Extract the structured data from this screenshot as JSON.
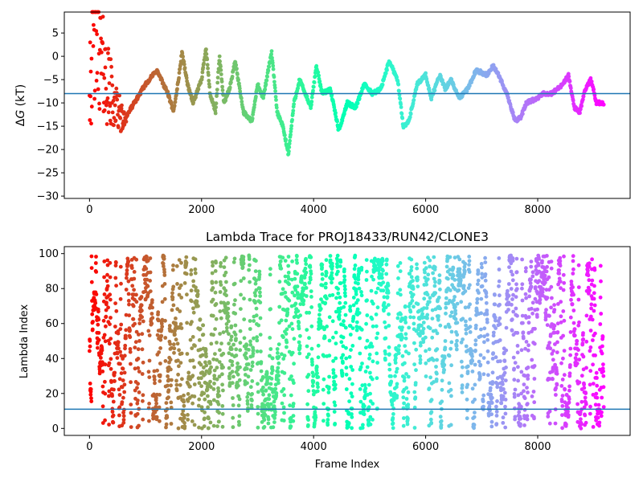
{
  "chart_data": [
    {
      "type": "scatter",
      "title": "",
      "xlabel": "",
      "ylabel_prefix": "Δ",
      "ylabel_var": "G",
      "ylabel_suffix": " (kT)",
      "xlim": [
        -450,
        9650
      ],
      "ylim": [
        -30.5,
        9.5
      ],
      "xticks": [
        0,
        2000,
        4000,
        6000,
        8000
      ],
      "xtick_labels": [
        "0",
        "2000",
        "4000",
        "6000",
        "8000"
      ],
      "yticks": [
        -30,
        -25,
        -20,
        -15,
        -10,
        -5,
        0,
        5
      ],
      "ytick_labels": [
        "−30",
        "−25",
        "−20",
        "−15",
        "−10",
        "−5",
        "0",
        "5"
      ],
      "hline": -8,
      "hline_color": "#1f77b4",
      "colormap": "rainbow (reversed: red at frame 0, violet at last frame)",
      "n_frames": 9200,
      "trace_waypoints": [
        [
          0,
          0
        ],
        [
          120,
          4
        ],
        [
          250,
          -3
        ],
        [
          400,
          -9
        ],
        [
          600,
          -14
        ],
        [
          800,
          -10
        ],
        [
          1000,
          -6
        ],
        [
          1200,
          -3
        ],
        [
          1400,
          -8
        ],
        [
          1500,
          -12
        ],
        [
          1600,
          -4
        ],
        [
          1650,
          1
        ],
        [
          1750,
          -6
        ],
        [
          1850,
          -10
        ],
        [
          2000,
          -5
        ],
        [
          2080,
          2
        ],
        [
          2150,
          -8
        ],
        [
          2250,
          -12
        ],
        [
          2320,
          0
        ],
        [
          2400,
          -10
        ],
        [
          2500,
          -7
        ],
        [
          2600,
          -1
        ],
        [
          2750,
          -12
        ],
        [
          2900,
          -14
        ],
        [
          3000,
          -6
        ],
        [
          3100,
          -9
        ],
        [
          3250,
          1
        ],
        [
          3350,
          -12
        ],
        [
          3450,
          -15
        ],
        [
          3550,
          -21
        ],
        [
          3650,
          -10
        ],
        [
          3750,
          -5
        ],
        [
          3850,
          -8
        ],
        [
          3950,
          -11
        ],
        [
          4050,
          -2
        ],
        [
          4150,
          -8
        ],
        [
          4300,
          -7
        ],
        [
          4450,
          -16
        ],
        [
          4600,
          -10
        ],
        [
          4750,
          -11
        ],
        [
          4900,
          -6
        ],
        [
          5050,
          -8
        ],
        [
          5200,
          -7
        ],
        [
          5350,
          -1
        ],
        [
          5500,
          -5
        ],
        [
          5600,
          -15
        ],
        [
          5700,
          -14
        ],
        [
          5850,
          -6
        ],
        [
          6000,
          -4
        ],
        [
          6100,
          -9
        ],
        [
          6250,
          -4
        ],
        [
          6350,
          -7
        ],
        [
          6450,
          -5
        ],
        [
          6600,
          -9
        ],
        [
          6750,
          -7
        ],
        [
          6900,
          -3
        ],
        [
          7100,
          -4
        ],
        [
          7200,
          -2
        ],
        [
          7300,
          -4
        ],
        [
          7450,
          -8
        ],
        [
          7600,
          -14
        ],
        [
          7700,
          -13
        ],
        [
          7800,
          -10
        ],
        [
          8000,
          -9
        ],
        [
          8100,
          -8
        ],
        [
          8250,
          -8
        ],
        [
          8450,
          -6
        ],
        [
          8550,
          -4
        ],
        [
          8650,
          -11
        ],
        [
          8750,
          -12
        ],
        [
          8850,
          -7
        ],
        [
          8950,
          -5
        ],
        [
          9050,
          -10
        ],
        [
          9180,
          -10
        ]
      ],
      "early_scatter_spread": [
        -29,
        8
      ]
    },
    {
      "type": "scatter",
      "title": "Lambda Trace for PROJ18433/RUN42/CLONE3",
      "xlabel": "Frame Index",
      "ylabel": "Lambda Index",
      "xlim": [
        -450,
        9650
      ],
      "ylim": [
        -4,
        104
      ],
      "xticks": [
        0,
        2000,
        4000,
        6000,
        8000
      ],
      "xtick_labels": [
        "0",
        "2000",
        "4000",
        "6000",
        "8000"
      ],
      "yticks": [
        0,
        20,
        40,
        60,
        80,
        100
      ],
      "ytick_labels": [
        "0",
        "20",
        "40",
        "60",
        "80",
        "100"
      ],
      "hline": 11,
      "hline_color": "#1f77b4",
      "lambda_range": [
        0,
        99
      ],
      "colormap": "rainbow (reversed: red at frame 0, violet at last frame)",
      "n_frames": 9200
    }
  ]
}
